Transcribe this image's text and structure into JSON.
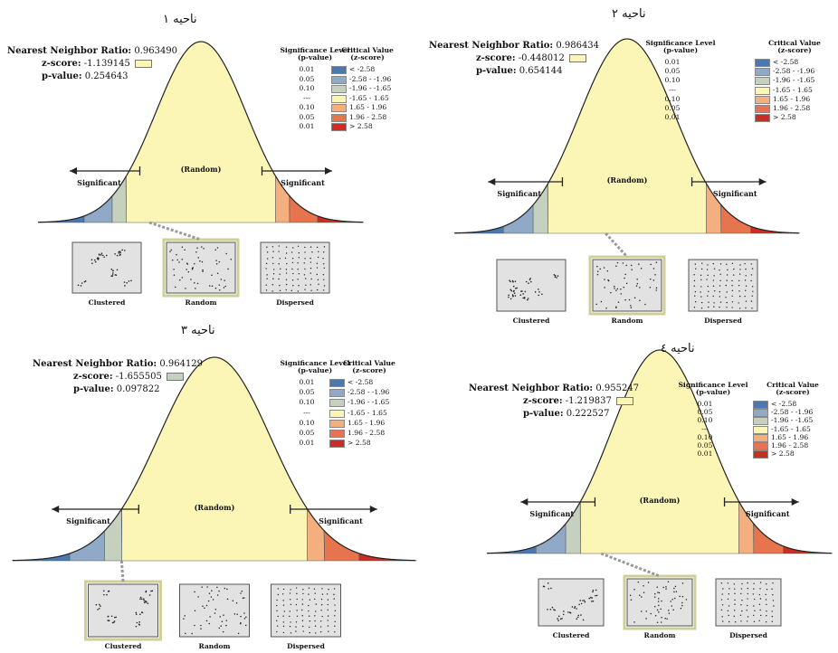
{
  "colors": {
    "c_m258": "#4a78b0",
    "c_m196": "#8fa9c7",
    "c_m165": "#c5d0bf",
    "c_mid": "#fbf6b6",
    "c_p165": "#f3b07e",
    "c_p196": "#e6744f",
    "c_p258": "#cf2b26",
    "selected_border": "#cfcf9a",
    "box_fill": "#e2e2e2"
  },
  "legend": {
    "sig_header": [
      "Significance Level",
      "(p-value)"
    ],
    "crit_header": [
      "Critical Value",
      "(z-score)"
    ],
    "rows": [
      {
        "p": "0.01",
        "z": "< -2.58",
        "color_key": "c_m258"
      },
      {
        "p": "0.05",
        "z": "-2.58 - -1.96",
        "color_key": "c_m196"
      },
      {
        "p": "0.10",
        "z": "-1.96 - -1.65",
        "color_key": "c_m165"
      },
      {
        "p": "---",
        "z": "-1.65 - 1.65",
        "color_key": "c_mid"
      },
      {
        "p": "0.10",
        "z": "1.65 - 1.96",
        "color_key": "c_p165"
      },
      {
        "p": "0.05",
        "z": "1.96 - 2.58",
        "color_key": "c_p196"
      },
      {
        "p": "0.01",
        "z": "> 2.58",
        "color_key": "c_p258"
      }
    ]
  },
  "labels": {
    "nnr": "Nearest Neighbor Ratio:",
    "z": "z-score:",
    "p": "p-value:",
    "random_curve": "(Random)",
    "significant": "Significant",
    "clustered": "Clustered",
    "random": "Random",
    "dispersed": "Dispersed"
  },
  "chart_data": [
    {
      "type": "normal-distribution",
      "title": "ناحیه ۱",
      "nearest_neighbor_ratio": "0.963490",
      "z_score": "-1.139145",
      "p_value": "0.254643",
      "zscore_color": "#fbf6b6",
      "result": "Random"
    },
    {
      "type": "normal-distribution",
      "title": "ناحیه ۲",
      "nearest_neighbor_ratio": "0.986434",
      "z_score": "-0.448012",
      "p_value": "0.654144",
      "zscore_color": "#fbf6b6",
      "result": "Random"
    },
    {
      "type": "normal-distribution",
      "title": "ناحیه ۳",
      "nearest_neighbor_ratio": "0.964129",
      "z_score": "-1.655505",
      "p_value": "0.097822",
      "zscore_color": "#c5d0bf",
      "result": "Clustered"
    },
    {
      "type": "normal-distribution",
      "title": "ناحیه ٤",
      "nearest_neighbor_ratio": "0.955247",
      "z_score": "-1.219837",
      "p_value": "0.222527",
      "zscore_color": "#fbf6b6",
      "result": "Random"
    }
  ]
}
